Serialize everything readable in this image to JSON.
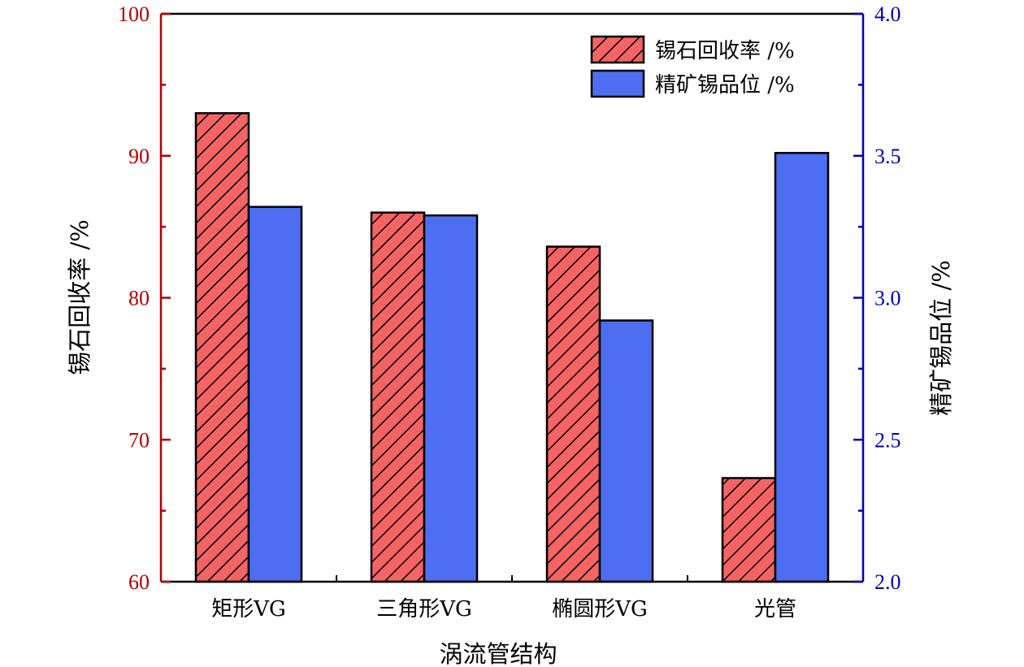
{
  "chart_data": {
    "type": "bar",
    "xlabel": "涡流管结构",
    "categories": [
      "矩形VG",
      "三角形VG",
      "椭圆形VG",
      "光管"
    ],
    "series": [
      {
        "name": "锡石回收率 /%",
        "axis": "left",
        "values": [
          93.0,
          86.0,
          83.6,
          67.3
        ],
        "color": "#f46464",
        "pattern": "diagonal-hatch"
      },
      {
        "name": "精矿锡品位 /%",
        "axis": "right",
        "values": [
          3.32,
          3.29,
          2.92,
          3.51
        ],
        "color": "#4d6ef0",
        "pattern": "solid"
      }
    ],
    "y_left": {
      "label": "锡石回收率 /%",
      "ylim": [
        60,
        100
      ],
      "ticks": [
        "60",
        "70",
        "80",
        "90",
        "100"
      ],
      "tick_values": [
        60,
        70,
        80,
        90,
        100
      ],
      "color": "#b30000"
    },
    "y_right": {
      "label": "精矿锡品位 /%",
      "ylim": [
        2.0,
        4.0
      ],
      "ticks": [
        "2.0",
        "2.5",
        "3.0",
        "3.5",
        "4.0"
      ],
      "tick_values": [
        2.0,
        2.5,
        3.0,
        3.5,
        4.0
      ],
      "color": "#0000b3"
    },
    "legend": "top-right",
    "grid": false
  }
}
